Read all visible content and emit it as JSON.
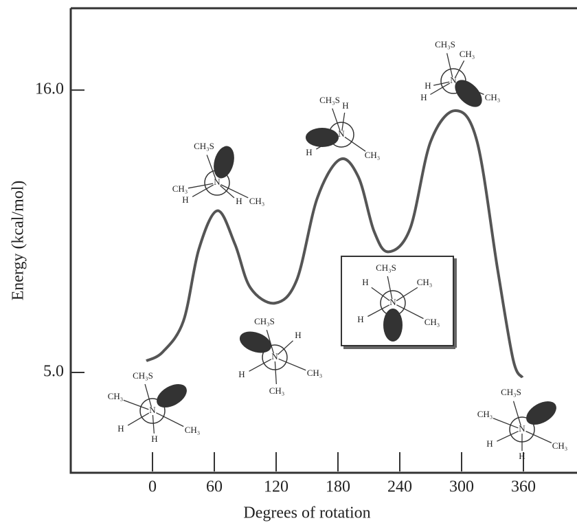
{
  "chart_data": {
    "type": "line",
    "x_label": "Degrees of rotation",
    "y_label": "Energy (kcal/mol)",
    "xlim": [
      -79.33,
      412
    ],
    "ylim": [
      1.09,
      19.19
    ],
    "xticks": [
      0,
      60,
      120,
      180,
      240,
      300,
      360
    ],
    "yticks": [
      {
        "value": 16,
        "label": "16.0"
      },
      {
        "value": 5,
        "label": "5.0"
      }
    ],
    "color": "#555555",
    "x": [
      -6,
      10,
      30,
      45,
      63,
      80,
      95,
      119,
      140,
      160,
      182,
      200,
      215,
      229,
      250,
      270,
      294,
      315,
      335,
      350,
      359
    ],
    "values": [
      5.45,
      5.8,
      7.0,
      9.8,
      11.3,
      10.0,
      8.3,
      7.7,
      8.6,
      11.8,
      13.3,
      12.6,
      10.5,
      9.7,
      10.6,
      14.0,
      15.2,
      14.0,
      9.0,
      5.5,
      4.8
    ],
    "conformers": [
      {
        "labels": [
          "N",
          "CH₃S",
          "CH₃",
          "H",
          "H",
          "CH₃"
        ]
      },
      {
        "labels": [
          "N",
          "CH₃S",
          "CH₃",
          "H",
          "H",
          "CH₃"
        ]
      },
      {
        "labels": [
          "N",
          "CH₃S",
          "H",
          "H",
          "CH₃",
          "CH₃"
        ]
      },
      {
        "labels": [
          "N",
          "CH₃S",
          "H",
          "H",
          "CH₃"
        ]
      },
      {
        "labels": [
          "N",
          "CH₃S",
          "H",
          "CH₃",
          "H",
          "CH₃"
        ]
      },
      {
        "labels": [
          "N",
          "CH₃S",
          "CH₃",
          "H",
          "H",
          "CH₃"
        ]
      },
      {
        "labels": [
          "N",
          "CH₃S",
          "CH₃",
          "H",
          "H",
          "CH₃"
        ]
      }
    ]
  }
}
